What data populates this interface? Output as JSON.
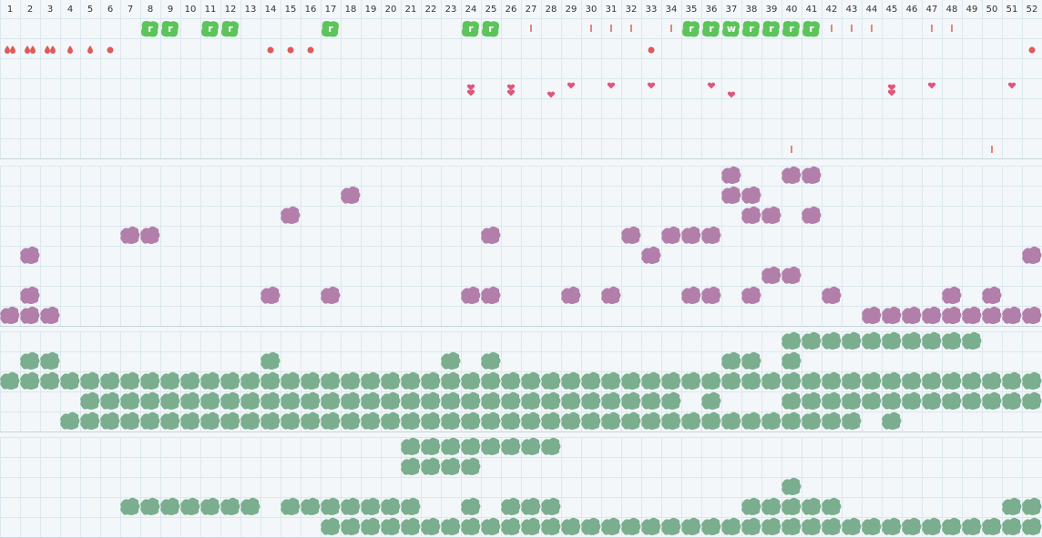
{
  "header": {
    "weeks": [
      1,
      2,
      3,
      4,
      5,
      6,
      7,
      8,
      9,
      10,
      11,
      12,
      13,
      14,
      15,
      16,
      17,
      18,
      19,
      20,
      21,
      22,
      23,
      24,
      25,
      26,
      27,
      28,
      29,
      30,
      31,
      32,
      33,
      34,
      35,
      36,
      37,
      38,
      39,
      40,
      41,
      42,
      43,
      44,
      45,
      46,
      47,
      48,
      49,
      50,
      51,
      52
    ]
  },
  "badges": [
    "r",
    "r",
    "r",
    "r",
    "r",
    "r",
    "r",
    "r",
    "r",
    "w",
    "r",
    "r",
    "r",
    "r"
  ]
}
